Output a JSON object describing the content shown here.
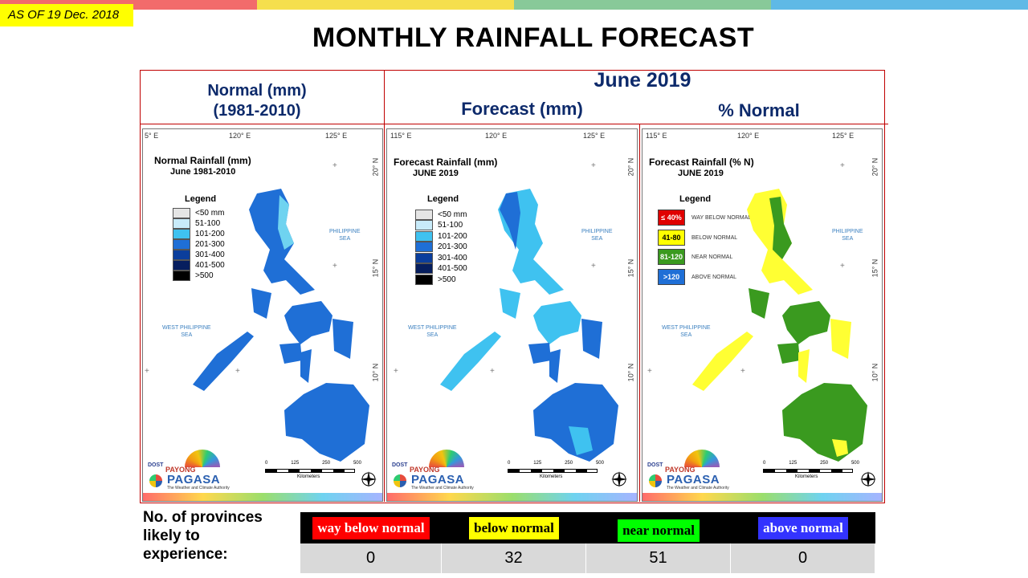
{
  "top_stripe_colors": [
    "#f26b6b",
    "#f5df4d",
    "#88c999",
    "#5fb9e6"
  ],
  "as_of": "AS OF 19 Dec. 2018",
  "title": "MONTHLY RAINFALL FORECAST",
  "header": {
    "normal_line1": "Normal (mm)",
    "normal_line2": "(1981-2010)",
    "month": "June 2019",
    "forecast": "Forecast (mm)",
    "percent_normal": "% Normal"
  },
  "maps": [
    {
      "title_line1": "Normal Rainfall (mm)",
      "title_line2": "June 1981-2010",
      "legend_title": "Legend",
      "legend": [
        {
          "label": "<50 mm",
          "color": "#e5e5e5"
        },
        {
          "label": "51-100",
          "color": "#c8ebfa"
        },
        {
          "label": "101-200",
          "color": "#3fc2f0"
        },
        {
          "label": "201-300",
          "color": "#1f6fd6"
        },
        {
          "label": "301-400",
          "color": "#0b3e9c"
        },
        {
          "label": "401-500",
          "color": "#061e5e"
        },
        {
          "label": ">500",
          "color": "#000000"
        }
      ]
    },
    {
      "title_line1": "Forecast Rainfall (mm)",
      "title_line2": "JUNE 2019",
      "legend_title": "Legend",
      "legend": [
        {
          "label": "<50 mm",
          "color": "#e5e5e5"
        },
        {
          "label": "51-100",
          "color": "#c8ebfa"
        },
        {
          "label": "101-200",
          "color": "#3fc2f0"
        },
        {
          "label": "201-300",
          "color": "#1f6fd6"
        },
        {
          "label": "301-400",
          "color": "#0b3e9c"
        },
        {
          "label": "401-500",
          "color": "#061e5e"
        },
        {
          "label": ">500",
          "color": "#000000"
        }
      ]
    },
    {
      "title_line1": "Forecast Rainfall (% N)",
      "title_line2": "JUNE 2019",
      "legend_title": "Legend",
      "legend": [
        {
          "label": "≤ 40%",
          "desc": "WAY BELOW NORMAL",
          "color": "#e00000",
          "text_color": "#ffffff"
        },
        {
          "label": "41-80",
          "desc": "BELOW NORMAL",
          "color": "#ffff00",
          "text_color": "#000000"
        },
        {
          "label": "81-120",
          "desc": "NEAR NORMAL",
          "color": "#3a9a1f",
          "text_color": "#ffffff"
        },
        {
          "label": ">120",
          "desc": "ABOVE NORMAL",
          "color": "#1f6fd6",
          "text_color": "#ffffff"
        }
      ]
    }
  ],
  "map_labels": {
    "lon_115": "115° E",
    "lon_115_cut": "5° E",
    "lon_120": "120° E",
    "lon_125": "125° E",
    "lat_20": "20° N",
    "lat_15": "15° N",
    "lat_10": "10° N",
    "philippine_sea_1": "PHILIPPINE",
    "philippine_sea_2": "SEA",
    "west_sea_1": "WEST PHILIPPINE",
    "west_sea_2": "SEA",
    "scale_0": "0",
    "scale_125": "125",
    "scale_250": "250",
    "scale_500": "500",
    "kilometers": "Kilometers",
    "dost": "DOST",
    "payong": "PAYONG",
    "pagasa": "PAGASA",
    "authority": "The Weather and Climate Authority"
  },
  "bottom": {
    "label": "No. of provinces likely to experience:",
    "categories": [
      {
        "label": "way below normal",
        "bg": "#ff0000",
        "fg": "#ffffff",
        "count": "0"
      },
      {
        "label": "below normal",
        "bg": "#ffff00",
        "fg": "#000000",
        "count": "32"
      },
      {
        "label": "near normal",
        "bg": "#00ff00",
        "fg": "#000000",
        "count": "51"
      },
      {
        "label": "above normal",
        "bg": "#3333ff",
        "fg": "#ffffff",
        "count": "0"
      }
    ]
  }
}
